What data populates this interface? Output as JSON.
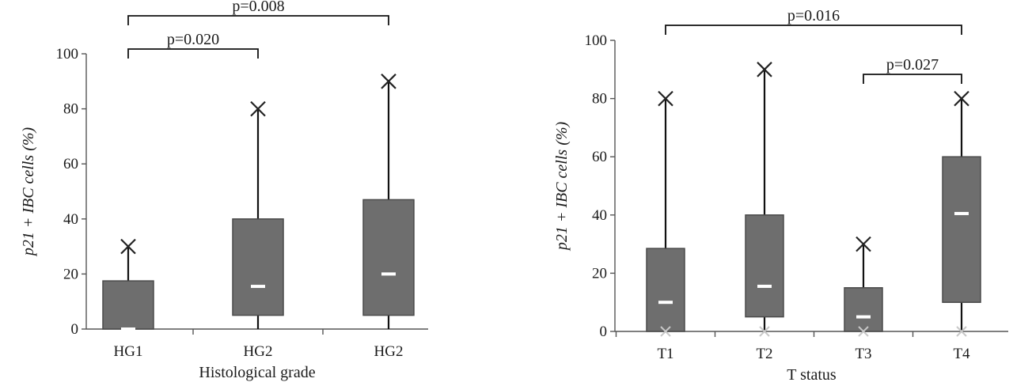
{
  "chart_data": [
    {
      "type": "box",
      "title": "",
      "xlabel": "Histological grade",
      "ylabel": "p21 + IBC cells  (%)",
      "ylim": [
        0,
        100
      ],
      "yticks": [
        0,
        20,
        40,
        60,
        80,
        100
      ],
      "categories": [
        "HG1",
        "HG2",
        "HG2"
      ],
      "boxes": [
        {
          "category": "HG1",
          "min": 0,
          "q1": 0,
          "median": 0,
          "q3": 17.5,
          "max": 30
        },
        {
          "category": "HG2",
          "min": 0,
          "q1": 5,
          "median": 15.5,
          "q3": 40,
          "max": 80
        },
        {
          "category": "HG2",
          "min": 0,
          "q1": 5,
          "median": 20,
          "q3": 47,
          "max": 90
        }
      ],
      "comparisons": [
        {
          "from": 0,
          "to": 2,
          "label": "p=0.008"
        },
        {
          "from": 0,
          "to": 1,
          "label": "p=0.020"
        }
      ]
    },
    {
      "type": "box",
      "title": "",
      "xlabel": "T status",
      "ylabel": "p21 + IBC cells  (%)",
      "ylim": [
        0,
        100
      ],
      "yticks": [
        0,
        20,
        40,
        60,
        80,
        100
      ],
      "categories": [
        "T1",
        "T2",
        "T3",
        "T4"
      ],
      "boxes": [
        {
          "category": "T1",
          "min": 0,
          "q1": 0,
          "median": 10,
          "q3": 28.5,
          "max": 80
        },
        {
          "category": "T2",
          "min": 0,
          "q1": 5,
          "median": 15.5,
          "q3": 40,
          "max": 90
        },
        {
          "category": "T3",
          "min": 0,
          "q1": 0,
          "median": 5,
          "q3": 15,
          "max": 30
        },
        {
          "category": "T4",
          "min": 0,
          "q1": 10,
          "median": 40.5,
          "q3": 60,
          "max": 80
        }
      ],
      "comparisons": [
        {
          "from": 0,
          "to": 3,
          "label": "p=0.016"
        },
        {
          "from": 2,
          "to": 3,
          "label": "p=0.027"
        }
      ]
    }
  ]
}
